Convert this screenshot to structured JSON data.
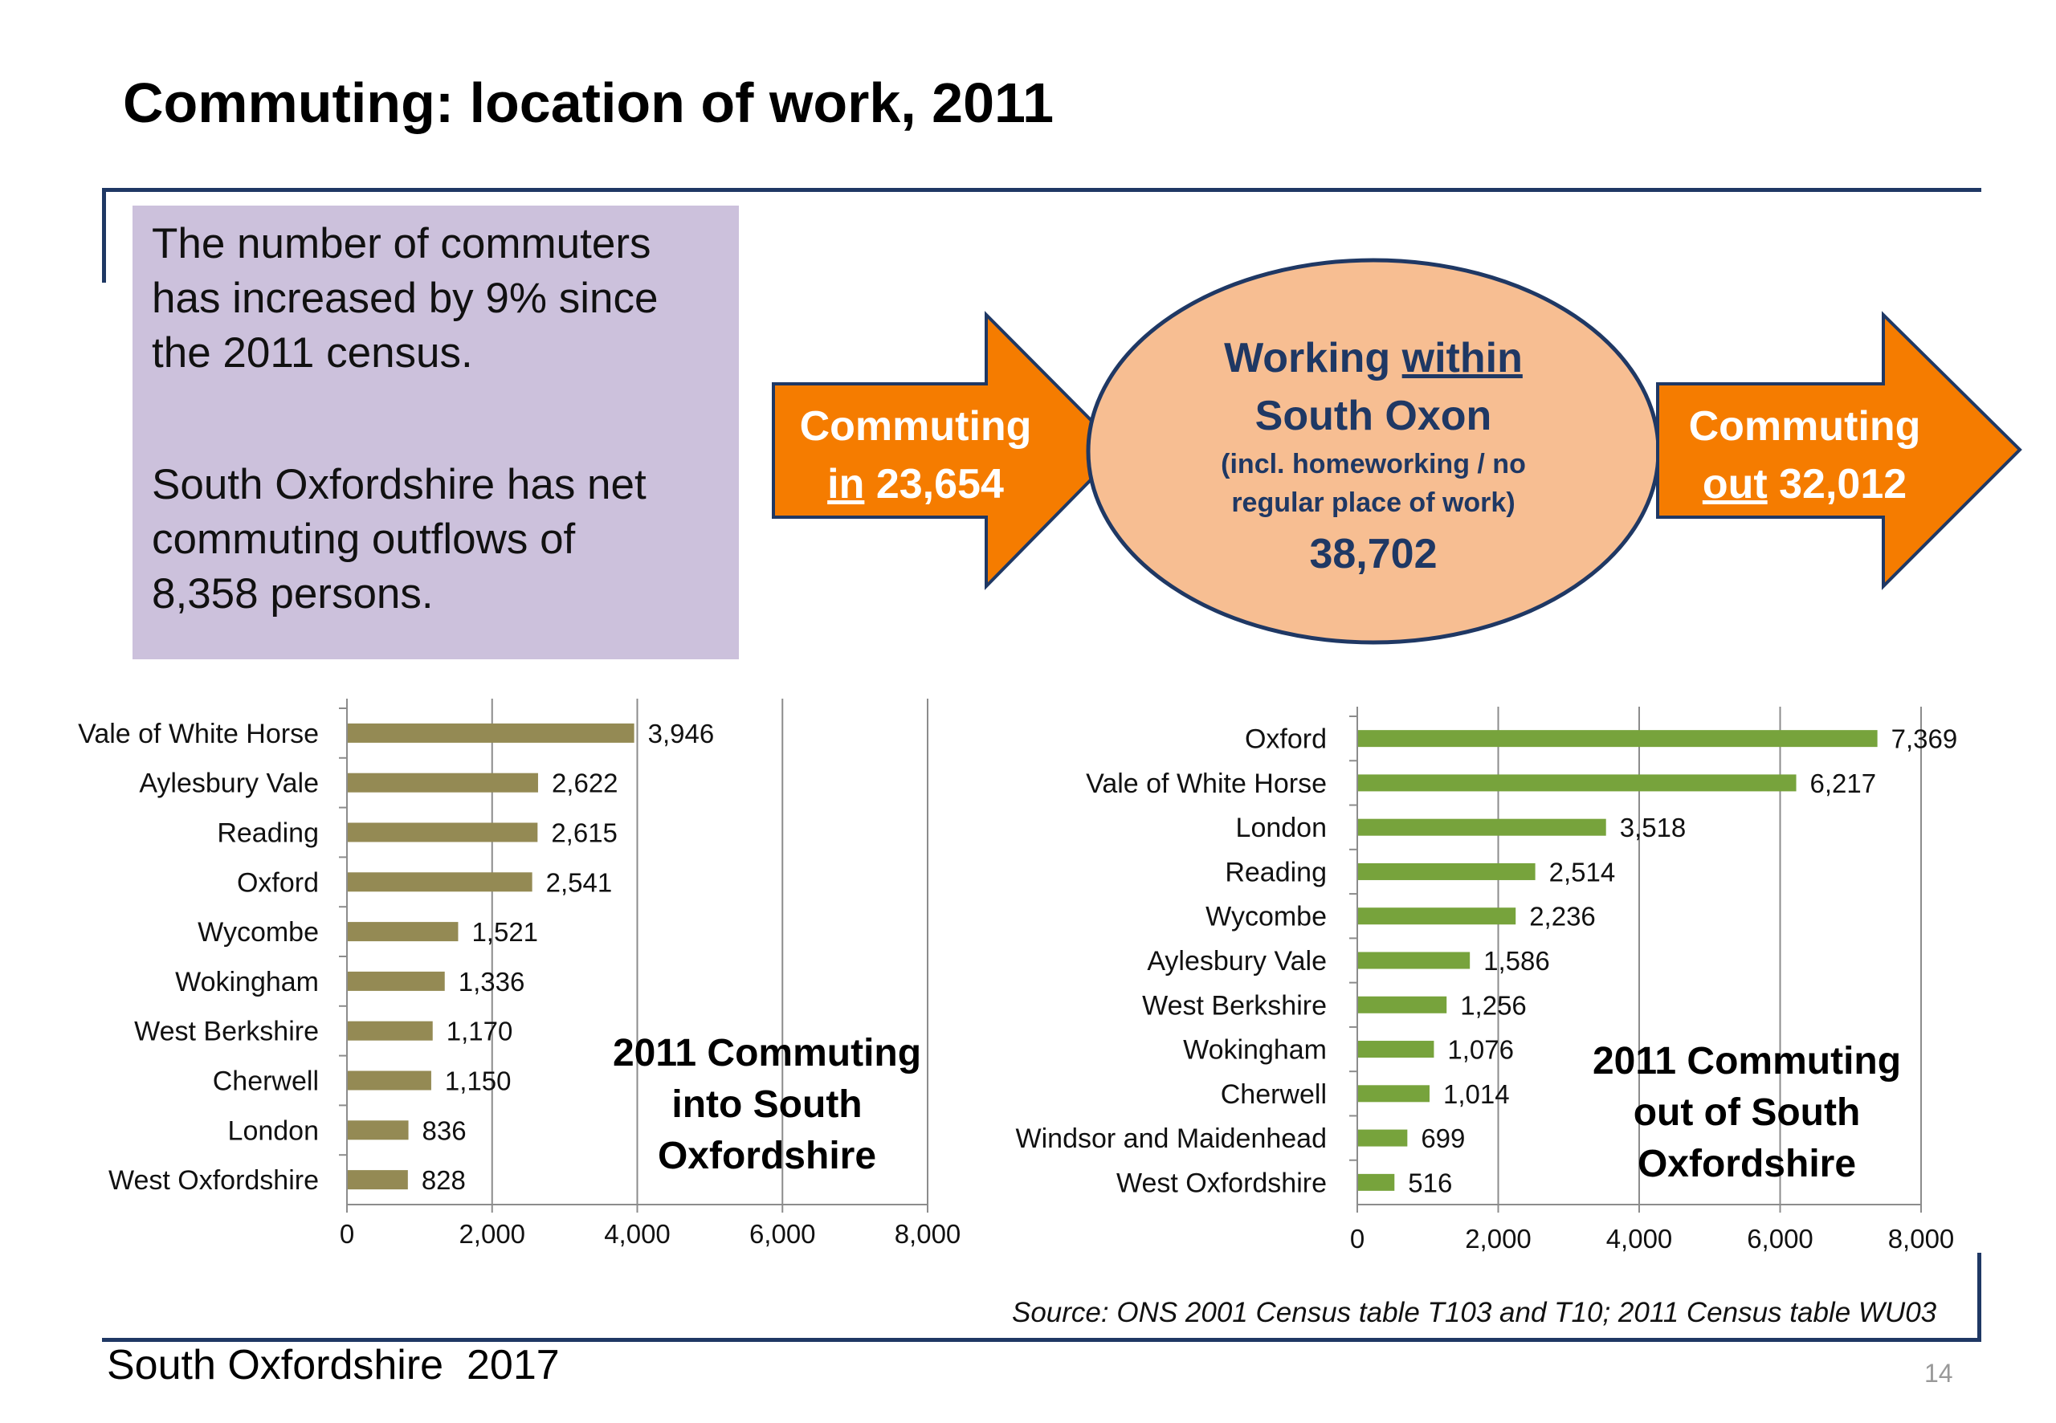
{
  "title": "Commuting: location of work, 2011",
  "info": {
    "para1": "The number of commuters\nhas increased by 9% since\nthe 2011 census.",
    "para2": "South Oxfordshire has net\ncommuting outflows of\n8,358 persons."
  },
  "flow": {
    "in_line1": "Commuting",
    "in_word": "in",
    "in_value": "23,654",
    "within_word1": "Working",
    "within_word2": "within",
    "within_line2": "South Oxon",
    "within_note1": "(incl. homeworking / no",
    "within_note2": "regular place of work)",
    "within_value": "38,702",
    "out_line1": "Commuting",
    "out_word": "out",
    "out_value": "32,012",
    "colors": {
      "arrow": "#f57c00",
      "ellipse": "#f7be92",
      "ellipse_border": "#1f3864",
      "text_dark": "#1f3864"
    }
  },
  "chart_data": [
    {
      "type": "bar",
      "orientation": "horizontal",
      "caption": "2011 Commuting\ninto South\nOxfordshire",
      "categories": [
        "Vale of White Horse",
        "Aylesbury Vale",
        "Reading",
        "Oxford",
        "Wycombe",
        "Wokingham",
        "West Berkshire",
        "Cherwell",
        "London",
        "West Oxfordshire"
      ],
      "values": [
        3946,
        2622,
        2615,
        2541,
        1521,
        1336,
        1170,
        1150,
        836,
        828
      ],
      "value_labels": [
        "3,946",
        "2,622",
        "2,615",
        "2,541",
        "1,521",
        "1,336",
        "1,170",
        "1,150",
        "836",
        "828"
      ],
      "xlim": [
        0,
        8000
      ],
      "x_ticks": [
        "0",
        "2,000",
        "4,000",
        "6,000",
        "8,000"
      ],
      "grid": true,
      "color": "#948a54"
    },
    {
      "type": "bar",
      "orientation": "horizontal",
      "caption": "2011 Commuting\nout of South\nOxfordshire",
      "categories": [
        "Oxford",
        "Vale of White Horse",
        "London",
        "Reading",
        "Wycombe",
        "Aylesbury Vale",
        "West Berkshire",
        "Wokingham",
        "Cherwell",
        "Windsor and Maidenhead",
        "West Oxfordshire"
      ],
      "values": [
        7369,
        6217,
        3518,
        2514,
        2236,
        1586,
        1256,
        1076,
        1014,
        699,
        516
      ],
      "value_labels": [
        "7,369",
        "6,217",
        "3,518",
        "2,514",
        "2,236",
        "1,586",
        "1,256",
        "1,076",
        "1,014",
        "699",
        "516"
      ],
      "xlim": [
        0,
        8000
      ],
      "x_ticks": [
        "0",
        "2,000",
        "4,000",
        "6,000",
        "8,000"
      ],
      "grid": true,
      "color": "#77a33c"
    }
  ],
  "source": "Source: ONS 2001 Census table T103 and T10; 2011 Census table WU03",
  "footer": "South Oxfordshire  2017",
  "page_number": "14"
}
